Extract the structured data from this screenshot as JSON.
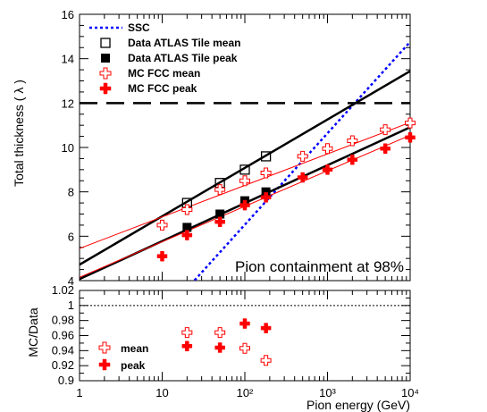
{
  "colors": {
    "red": "#ff0000",
    "blue": "#0000ff",
    "black": "#000000"
  },
  "chart_data": [
    {
      "type": "line",
      "panel": "top",
      "x_scale": "log",
      "xlim": [
        1,
        10000
      ],
      "ylim": [
        4,
        16
      ],
      "ylabel": "Total thickness ( λ )",
      "xlabel": "",
      "grid": false,
      "legend_position": "top-left",
      "annotation": "Pion containment at 98%",
      "y_ticks": [
        "4",
        "6",
        "8",
        "10",
        "12",
        "14",
        "16"
      ],
      "x_ticks": [],
      "legend": [
        {
          "label": "SSC",
          "marker": "dotted-line",
          "color": "#0000ff"
        },
        {
          "label": "Data ATLAS Tile mean",
          "marker": "open-square",
          "color": "#000000"
        },
        {
          "label": "Data ATLAS Tile peak",
          "marker": "filled-square",
          "color": "#000000"
        },
        {
          "label": "MC FCC mean",
          "marker": "open-cross",
          "color": "#ff0000"
        },
        {
          "label": "MC FCC peak",
          "marker": "filled-cross",
          "color": "#ff0000"
        }
      ],
      "series": [
        {
          "name": "Data ATLAS Tile mean",
          "marker": "open-square",
          "color": "#000000",
          "x": [
            20,
            50,
            100,
            180
          ],
          "y": [
            7.5,
            8.4,
            9.0,
            9.6
          ]
        },
        {
          "name": "Data ATLAS Tile peak",
          "marker": "filled-square",
          "color": "#000000",
          "x": [
            20,
            50,
            100,
            180
          ],
          "y": [
            6.4,
            7.0,
            7.6,
            8.0
          ]
        },
        {
          "name": "MC FCC mean",
          "marker": "open-cross",
          "color": "#ff0000",
          "x": [
            10,
            20,
            50,
            100,
            180,
            500,
            1000,
            2000,
            5000,
            10000
          ],
          "y": [
            6.5,
            7.2,
            8.1,
            8.5,
            8.85,
            9.6,
            9.95,
            10.3,
            10.8,
            11.1
          ]
        },
        {
          "name": "MC FCC peak",
          "marker": "filled-cross",
          "color": "#ff0000",
          "x": [
            10,
            20,
            50,
            100,
            180,
            500,
            1000,
            2000,
            5000,
            10000
          ],
          "y": [
            5.1,
            6.05,
            6.65,
            7.4,
            7.75,
            8.65,
            9.0,
            9.45,
            9.95,
            10.45
          ]
        }
      ],
      "lines": [
        {
          "kind": "horizontal",
          "style": "dashed",
          "color": "#000000",
          "y": 12
        },
        {
          "kind": "fit-log",
          "style": "dotted",
          "color": "#0000ff",
          "label": "SSC",
          "y_at_x1": -1.72,
          "slope_per_decade": 4.12
        },
        {
          "kind": "fit-log",
          "style": "solid-thick",
          "color": "#000000",
          "y_at_x1": 4.72,
          "slope_per_decade": 2.18
        },
        {
          "kind": "fit-log",
          "style": "solid-thick",
          "color": "#000000",
          "y_at_x1": 4.07,
          "slope_per_decade": 1.71
        },
        {
          "kind": "fit-log",
          "style": "solid-thin",
          "color": "#ff0000",
          "y_at_x1": 5.45,
          "slope_per_decade": 1.42
        },
        {
          "kind": "fit-log",
          "style": "solid-thin",
          "color": "#ff0000",
          "y_at_x1": 4.15,
          "slope_per_decade": 1.6
        }
      ]
    },
    {
      "type": "scatter",
      "panel": "bottom",
      "x_scale": "log",
      "xlim": [
        1,
        10000
      ],
      "ylim": [
        0.9,
        1.02
      ],
      "xlabel": "Pion energy (GeV)",
      "ylabel": "MC/Data",
      "grid": false,
      "legend_position": "bottom-left",
      "x_ticks": [
        "1",
        "10",
        "10²",
        "10³",
        "10⁴"
      ],
      "y_ticks": [
        "0.9",
        "0.92",
        "0.94",
        "0.96",
        "0.98",
        "1",
        "1.02"
      ],
      "reference_line": {
        "y": 1.0,
        "style": "dotted",
        "color": "#000000"
      },
      "legend": [
        {
          "label": "mean",
          "marker": "open-cross",
          "color": "#ff0000"
        },
        {
          "label": "peak",
          "marker": "filled-cross",
          "color": "#ff0000"
        }
      ],
      "series": [
        {
          "name": "mean",
          "marker": "open-cross",
          "color": "#ff0000",
          "x": [
            20,
            50,
            100,
            180
          ],
          "y": [
            0.964,
            0.964,
            0.943,
            0.927
          ]
        },
        {
          "name": "peak",
          "marker": "filled-cross",
          "color": "#ff0000",
          "x": [
            20,
            50,
            100,
            180
          ],
          "y": [
            0.946,
            0.944,
            0.976,
            0.97
          ]
        }
      ]
    }
  ]
}
